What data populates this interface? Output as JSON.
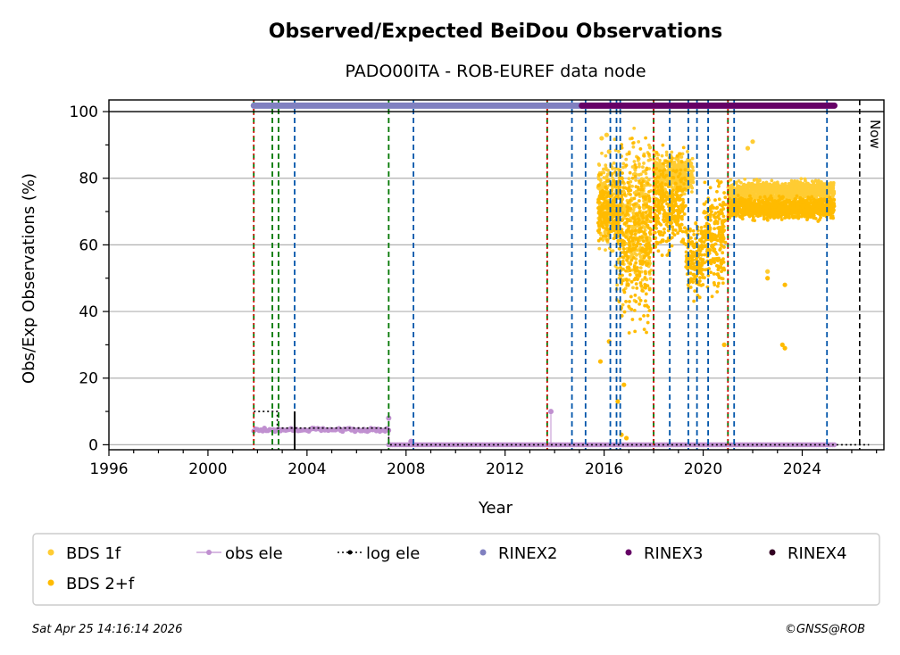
{
  "chart_data": {
    "type": "scatter",
    "title": "Observed/Expected BeiDou Observations",
    "subtitle": "PADO00ITA - ROB-EUREF data node",
    "xlabel": "Year",
    "ylabel": "Obs/Exp Observations (%)",
    "xlim": [
      1996,
      2027.3
    ],
    "ylim": [
      -1.5,
      103.5
    ],
    "xticks": [
      1996,
      2000,
      2004,
      2008,
      2012,
      2016,
      2020,
      2024
    ],
    "yticks": [
      0,
      20,
      40,
      60,
      80,
      100
    ],
    "grid": "horizontal",
    "now_label": "Now",
    "now_year": 2026.32,
    "rinex_bars": [
      {
        "name": "RINEX2",
        "from": 2001.85,
        "to": 2015.1,
        "y": 101.8,
        "color": "#8080c0"
      },
      {
        "name": "RINEX3",
        "from": 2015.1,
        "to": 2025.3,
        "y": 101.8,
        "color": "#660066"
      }
    ],
    "event_lines": {
      "green_dashed": [
        2001.85,
        2002.6,
        2002.85,
        2007.3,
        2013.7,
        2018.0,
        2021.0
      ],
      "red_dotted": [
        2001.85,
        2013.7,
        2018.0,
        2021.0
      ],
      "blue_dashed": [
        2003.5,
        2008.3,
        2014.7,
        2015.25,
        2016.25,
        2016.5,
        2016.65,
        2018.65,
        2019.4,
        2019.75,
        2020.2,
        2021.25,
        2025.0
      ],
      "black_solid": [
        2003.5
      ]
    },
    "series": [
      {
        "name": "BDS 1f",
        "color": "#ffcc33",
        "segments": [
          {
            "from": 2015.75,
            "to": 2016.5,
            "mean": 72,
            "spread": 10
          },
          {
            "from": 2016.5,
            "to": 2017.9,
            "mean": 68,
            "spread": 15
          },
          {
            "from": 2018.0,
            "to": 2019.6,
            "mean": 81,
            "spread": 4
          },
          {
            "from": 2021.0,
            "to": 2025.3,
            "mean": 76,
            "spread": 2
          }
        ],
        "outliers": [
          [
            2015.9,
            92
          ],
          [
            2016.1,
            93
          ],
          [
            2016.2,
            88
          ],
          [
            2021.8,
            89
          ],
          [
            2022.0,
            91
          ],
          [
            2022.6,
            52
          ]
        ]
      },
      {
        "name": "BDS 2+f",
        "color": "#ffbb00",
        "segments": [
          {
            "from": 2015.75,
            "to": 2016.6,
            "mean": 70,
            "spread": 6
          },
          {
            "from": 2016.6,
            "to": 2017.9,
            "mean": 62,
            "spread": 16
          },
          {
            "from": 2018.0,
            "to": 2019.3,
            "mean": 72,
            "spread": 9
          },
          {
            "from": 2019.3,
            "to": 2020.0,
            "mean": 55,
            "spread": 7
          },
          {
            "from": 2020.0,
            "to": 2020.9,
            "mean": 62,
            "spread": 10
          },
          {
            "from": 2021.0,
            "to": 2025.3,
            "mean": 71,
            "spread": 2
          }
        ],
        "outliers": [
          [
            2015.85,
            25
          ],
          [
            2016.2,
            31
          ],
          [
            2016.55,
            13
          ],
          [
            2016.7,
            3
          ],
          [
            2016.9,
            2
          ],
          [
            2016.8,
            18
          ],
          [
            2020.85,
            30
          ],
          [
            2023.2,
            30
          ],
          [
            2023.3,
            29
          ],
          [
            2022.6,
            50
          ],
          [
            2023.3,
            48
          ]
        ]
      },
      {
        "name": "obs ele",
        "color": "#c090d0",
        "segments": [
          {
            "from": 2001.85,
            "to": 2007.3,
            "value": 4.5
          },
          {
            "from": 2007.3,
            "to": 2025.3,
            "value": 0
          }
        ],
        "outliers": [
          [
            2013.85,
            10
          ],
          [
            2007.3,
            8
          ],
          [
            2008.2,
            1
          ]
        ]
      },
      {
        "name": "log ele",
        "color": "#000000",
        "steps": [
          [
            2001.85,
            10
          ],
          [
            2002.8,
            10
          ],
          [
            2002.8,
            5
          ],
          [
            2007.3,
            5
          ],
          [
            2007.3,
            0
          ],
          [
            2026.7,
            0
          ]
        ]
      },
      {
        "name": "RINEX2",
        "color": "#8080c0"
      },
      {
        "name": "RINEX3",
        "color": "#660066"
      },
      {
        "name": "RINEX4",
        "color": "#330022"
      }
    ]
  },
  "legend": {
    "items": [
      {
        "label": "BDS 1f",
        "color": "#ffcc33",
        "style": "dot"
      },
      {
        "label": "obs ele",
        "color": "#c090d0",
        "style": "dotline"
      },
      {
        "label": "log ele",
        "color": "#000000",
        "style": "dotted"
      },
      {
        "label": "RINEX2",
        "color": "#8080c0",
        "style": "dot"
      },
      {
        "label": "RINEX3",
        "color": "#660066",
        "style": "dot"
      },
      {
        "label": "RINEX4",
        "color": "#330022",
        "style": "dot"
      },
      {
        "label": "BDS 2+f",
        "color": "#ffbb00",
        "style": "dot"
      }
    ]
  },
  "footer": {
    "timestamp": "Sat Apr 25 14:16:14 2026",
    "credit": "©GNSS@ROB"
  }
}
